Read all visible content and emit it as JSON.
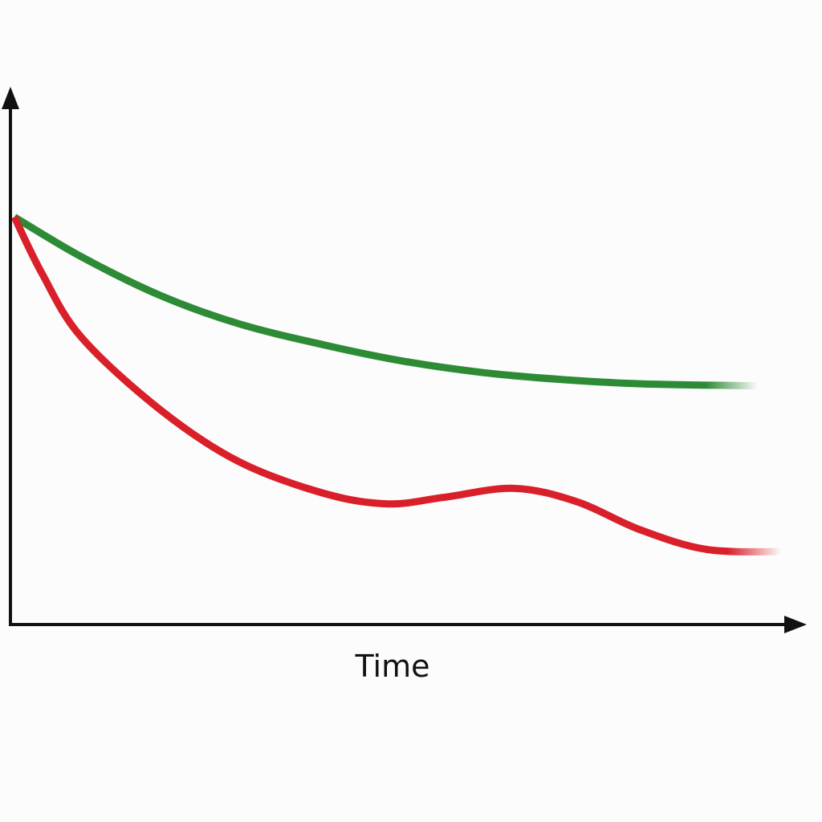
{
  "chart_data": {
    "type": "line",
    "title": "",
    "xlabel": "Time",
    "ylabel": "",
    "xlim": [
      0,
      100
    ],
    "ylim": [
      0,
      100
    ],
    "grid": false,
    "legend": "none",
    "series": [
      {
        "color": "#2e8b35",
        "x": [
          0.5,
          9,
          19,
          29,
          40,
          50,
          60,
          70,
          80,
          95
        ],
        "y": [
          76,
          68.6,
          61.4,
          56.1,
          52.1,
          49.1,
          47,
          45.7,
          44.9,
          44.5
        ]
      },
      {
        "color": "#d9202a",
        "x": [
          0.5,
          4,
          9,
          19,
          29,
          40,
          48,
          55,
          64,
          72,
          80,
          88.5,
          98
        ],
        "y": [
          76,
          65.5,
          53.6,
          40.1,
          30.4,
          24.4,
          22.5,
          23.7,
          25.4,
          22.9,
          17.7,
          14,
          13.6
        ]
      }
    ]
  }
}
